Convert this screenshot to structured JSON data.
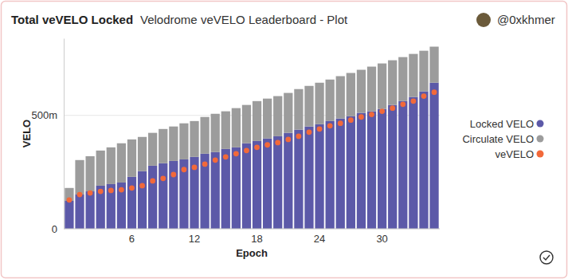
{
  "chart_data": {
    "type": "bar",
    "title": "Total veVELO Locked",
    "subtitle": "Velodrome veVELO Leaderboard - Plot",
    "author": "@0xkhmer",
    "x_label": "Epoch",
    "y_label": "VELO",
    "stacked": true,
    "grid": true,
    "legend": "right",
    "x": [
      0,
      1,
      2,
      3,
      4,
      5,
      6,
      7,
      8,
      9,
      10,
      11,
      12,
      13,
      14,
      15,
      16,
      17,
      18,
      19,
      20,
      21,
      22,
      23,
      24,
      25,
      26,
      27,
      28,
      29,
      30,
      31,
      32,
      33,
      34,
      35
    ],
    "xticks": [
      6,
      12,
      18,
      24,
      30
    ],
    "ylim": [
      0,
      840
    ],
    "yticks": [
      0,
      {
        "value": 500,
        "label": "500m"
      }
    ],
    "series": [
      {
        "name": "Locked VELO",
        "type": "bar",
        "color": "#5c59a8",
        "values": [
          123,
          151,
          165,
          190,
          197,
          204,
          229,
          254,
          278,
          289,
          299,
          306,
          317,
          331,
          338,
          352,
          359,
          377,
          387,
          398,
          408,
          423,
          437,
          451,
          461,
          475,
          486,
          496,
          511,
          518,
          528,
          546,
          563,
          581,
          606,
          644
        ]
      },
      {
        "name": "Circulate VELO",
        "type": "bar",
        "color": "#9c9c9c",
        "values": [
          57,
          152,
          155,
          155,
          162,
          173,
          165,
          151,
          145,
          151,
          152,
          159,
          158,
          162,
          169,
          166,
          173,
          169,
          176,
          176,
          177,
          176,
          179,
          179,
          183,
          183,
          187,
          191,
          190,
          197,
          201,
          197,
          194,
          190,
          179,
          159
        ]
      },
      {
        "name": "veVELO",
        "type": "scatter",
        "color": "#f2693a",
        "marker": "circle",
        "values": [
          127,
          151,
          158,
          165,
          169,
          172,
          180,
          190,
          211,
          222,
          239,
          261,
          271,
          285,
          303,
          317,
          331,
          345,
          359,
          370,
          380,
          394,
          408,
          426,
          440,
          454,
          465,
          479,
          493,
          504,
          518,
          532,
          549,
          563,
          585,
          602
        ]
      }
    ]
  }
}
